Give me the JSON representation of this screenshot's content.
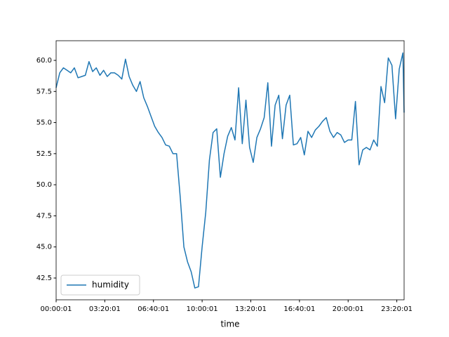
{
  "chart_data": {
    "type": "line",
    "xlabel": "time",
    "x": [
      "00:00:01",
      "00:15:01",
      "00:30:01",
      "00:45:01",
      "01:00:01",
      "01:15:01",
      "01:30:01",
      "01:45:01",
      "02:00:01",
      "02:15:01",
      "02:30:01",
      "02:45:01",
      "03:00:01",
      "03:15:01",
      "03:30:01",
      "03:45:01",
      "04:00:01",
      "04:15:01",
      "04:30:01",
      "04:45:01",
      "05:00:01",
      "05:15:01",
      "05:30:01",
      "05:45:01",
      "06:00:01",
      "06:15:01",
      "06:30:01",
      "06:45:01",
      "07:00:01",
      "07:15:01",
      "07:30:01",
      "07:45:01",
      "08:00:01",
      "08:15:01",
      "08:30:01",
      "08:45:01",
      "09:00:01",
      "09:15:01",
      "09:30:01",
      "09:45:01",
      "10:00:01",
      "10:15:01",
      "10:30:01",
      "10:45:01",
      "11:00:01",
      "11:15:01",
      "11:30:01",
      "11:45:01",
      "12:00:01",
      "12:15:01",
      "12:30:01",
      "12:45:01",
      "13:00:01",
      "13:15:01",
      "13:30:01",
      "13:45:01",
      "14:00:01",
      "14:15:01",
      "14:30:01",
      "14:45:01",
      "15:00:01",
      "15:15:01",
      "15:30:01",
      "15:45:01",
      "16:00:01",
      "16:15:01",
      "16:30:01",
      "16:45:01",
      "17:00:01",
      "17:15:01",
      "17:30:01",
      "17:45:01",
      "18:00:01",
      "18:15:01",
      "18:30:01",
      "18:45:01",
      "19:00:01",
      "19:15:01",
      "19:30:01",
      "19:45:01",
      "20:00:01",
      "20:15:01",
      "20:30:01",
      "20:45:01",
      "21:00:01",
      "21:15:01",
      "21:30:01",
      "21:45:01",
      "22:00:01",
      "22:15:01",
      "22:30:01",
      "22:45:01",
      "23:00:01",
      "23:15:01",
      "23:30:01",
      "23:45:01",
      "23:50:01"
    ],
    "series": [
      {
        "name": "humidity",
        "color": "#1f77b4",
        "values": [
          57.8,
          59.0,
          59.4,
          59.2,
          59.0,
          59.4,
          58.6,
          58.7,
          58.8,
          59.9,
          59.1,
          59.4,
          58.8,
          59.2,
          58.7,
          59.0,
          59.0,
          58.8,
          58.5,
          60.1,
          58.7,
          58.0,
          57.5,
          58.3,
          57.0,
          56.3,
          55.5,
          54.7,
          54.2,
          53.8,
          53.2,
          53.1,
          52.5,
          52.5,
          49.0,
          45.0,
          43.8,
          43.0,
          41.7,
          41.8,
          45.0,
          47.8,
          52.0,
          54.2,
          54.5,
          50.6,
          52.5,
          53.9,
          54.6,
          53.6,
          57.8,
          53.3,
          56.8,
          53.0,
          51.8,
          53.8,
          54.5,
          55.4,
          58.2,
          53.1,
          56.4,
          57.2,
          53.7,
          56.4,
          57.2,
          53.2,
          53.3,
          53.8,
          52.4,
          54.3,
          53.8,
          54.4,
          54.7,
          55.1,
          55.4,
          54.3,
          53.8,
          54.2,
          54.0,
          53.4,
          53.6,
          53.6,
          56.7,
          51.6,
          52.8,
          53.0,
          52.8,
          53.6,
          53.1,
          57.9,
          56.6,
          60.2,
          59.6,
          55.3,
          59.3,
          60.6,
          55.8
        ]
      }
    ],
    "xlim": [
      "00:00:01",
      "23:50:01"
    ],
    "xticks": [
      "00:00:01",
      "03:20:01",
      "06:40:01",
      "10:00:01",
      "13:20:01",
      "16:40:01",
      "20:00:01",
      "23:20:01"
    ],
    "ylim": [
      40.75,
      61.58
    ],
    "yticks": [
      42.5,
      {
        "value": 45,
        "label": "45.0"
      },
      47.5,
      {
        "value": 50,
        "label": "50.0"
      },
      52.5,
      {
        "value": 55,
        "label": "55.0"
      },
      57.5,
      {
        "value": 60,
        "label": "60.0"
      }
    ],
    "legend": "lower left"
  }
}
